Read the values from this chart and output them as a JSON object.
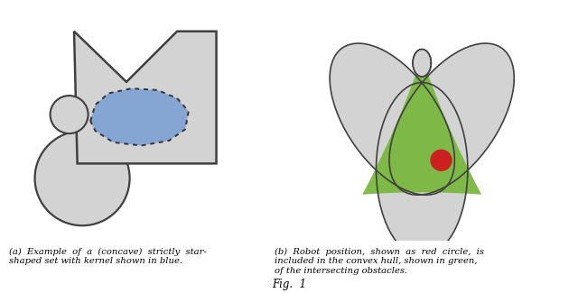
{
  "bg_color": "#ffffff",
  "gray_fill": "#d3d3d3",
  "gray_edge": "#404040",
  "blue_fill": "#7a9fd4",
  "green_fill": "#7ab840",
  "red_fill": "#cc2020",
  "caption_a": "(a)  Example  of  a  (concave)  strictly  star-\nshaped set with kernel shown in blue.",
  "caption_b": "(b)  Robot  position,  shown  as  red  circle,  is\nincluded in the convex hull, shown in green,\nof the intersecting obstacles.",
  "fig_caption": "Fig.  1"
}
